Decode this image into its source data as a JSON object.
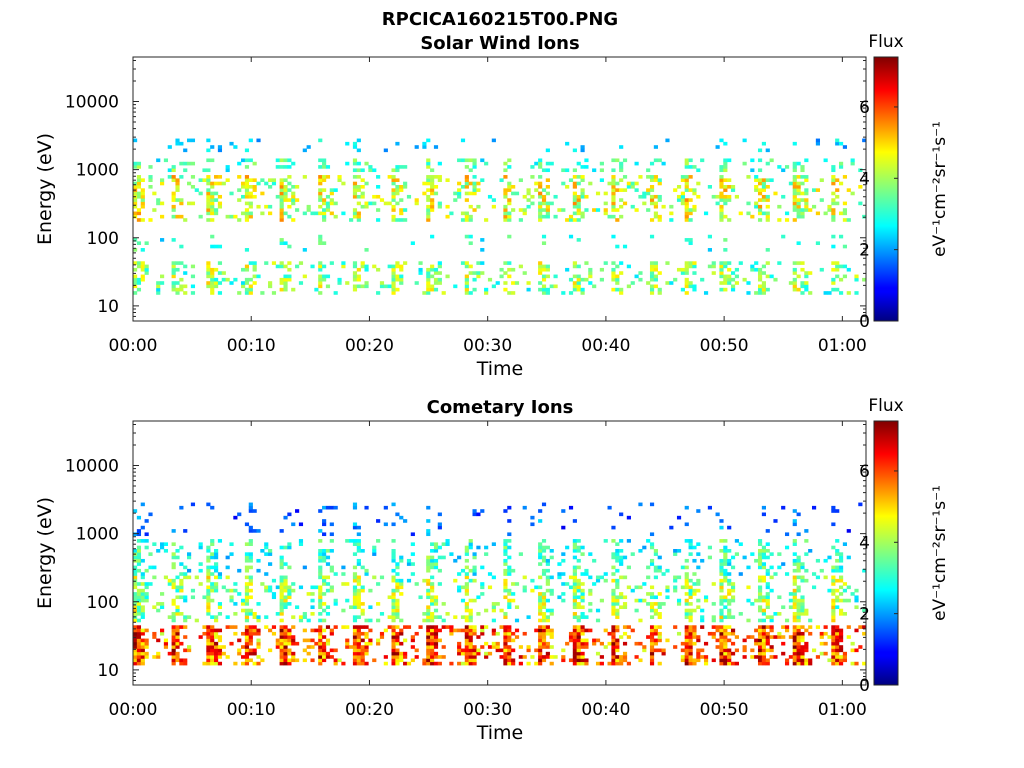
{
  "chart_data": [
    {
      "type": "heatmap",
      "title": "RPCICA160215T00.PNG",
      "subtitle": "Solar Wind Ions",
      "xlabel": "Time",
      "ylabel": "Energy (eV)",
      "x_ticks": [
        "00:00",
        "00:10",
        "00:20",
        "00:30",
        "00:40",
        "00:50",
        "01:00"
      ],
      "x_tick_minutes": [
        0,
        10,
        20,
        30,
        40,
        50,
        60
      ],
      "xlim_minutes": [
        0,
        62
      ],
      "y_scale": "log",
      "y_ticks": [
        "10",
        "100",
        "1000",
        "10000"
      ],
      "y_tick_values": [
        10,
        100,
        1000,
        10000
      ],
      "ylim": [
        6,
        45000
      ],
      "colorbar": {
        "title": "Flux",
        "label": "eV⁻¹cm⁻²sr⁻¹s⁻¹",
        "ticks": [
          "0",
          "2",
          "4",
          "6"
        ],
        "tick_values": [
          0,
          2,
          4,
          6
        ],
        "clim": [
          0,
          7.4
        ],
        "colormap": "jet"
      },
      "sweep_period_minutes": 3.1,
      "bands": [
        {
          "energy_min": 15,
          "energy_max": 45,
          "flux": 3.5,
          "spread": 1.0,
          "density": 0.45
        },
        {
          "energy_min": 60,
          "energy_max": 110,
          "flux": 2.8,
          "spread": 0.6,
          "density": 0.1
        },
        {
          "energy_min": 180,
          "energy_max": 850,
          "flux": 3.9,
          "spread": 1.1,
          "density": 0.5
        },
        {
          "energy_min": 900,
          "energy_max": 1500,
          "flux": 3.0,
          "spread": 0.7,
          "density": 0.35
        },
        {
          "energy_min": 1800,
          "energy_max": 2800,
          "flux": 2.2,
          "spread": 0.5,
          "density": 0.15
        }
      ],
      "legend": ""
    },
    {
      "type": "heatmap",
      "title": "Cometary Ions",
      "xlabel": "Time",
      "ylabel": "Energy (eV)",
      "x_ticks": [
        "00:00",
        "00:10",
        "00:20",
        "00:30",
        "00:40",
        "00:50",
        "01:00"
      ],
      "x_tick_minutes": [
        0,
        10,
        20,
        30,
        40,
        50,
        60
      ],
      "xlim_minutes": [
        0,
        62
      ],
      "y_scale": "log",
      "y_ticks": [
        "10",
        "100",
        "1000",
        "10000"
      ],
      "y_tick_values": [
        10,
        100,
        1000,
        10000
      ],
      "ylim": [
        6,
        45000
      ],
      "colorbar": {
        "title": "Flux",
        "label": "eV⁻¹cm⁻²sr⁻¹s⁻¹",
        "ticks": [
          "0",
          "2",
          "4",
          "6"
        ],
        "tick_values": [
          0,
          2,
          4,
          6
        ],
        "clim": [
          0,
          7.4
        ],
        "colormap": "jet"
      },
      "sweep_period_minutes": 3.1,
      "bands": [
        {
          "energy_min": 12,
          "energy_max": 45,
          "flux": 5.5,
          "spread": 1.4,
          "density": 0.8
        },
        {
          "energy_min": 50,
          "energy_max": 250,
          "flux": 3.5,
          "spread": 1.1,
          "density": 0.5
        },
        {
          "energy_min": 250,
          "energy_max": 800,
          "flux": 2.8,
          "spread": 0.8,
          "density": 0.35
        },
        {
          "energy_min": 900,
          "energy_max": 2800,
          "flux": 1.4,
          "spread": 0.6,
          "density": 0.12
        }
      ],
      "legend": ""
    }
  ]
}
